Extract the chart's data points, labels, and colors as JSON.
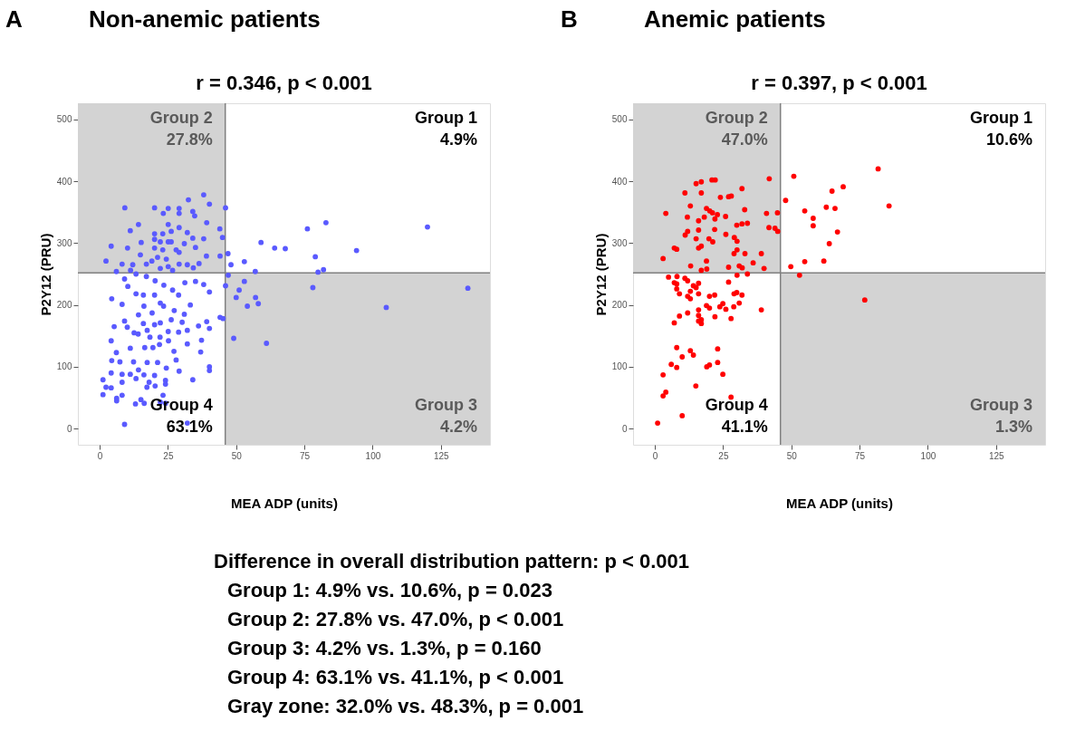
{
  "chart_data": [
    {
      "type": "scatter",
      "title": "Non-anemic patients",
      "subtitle": "r = 0.346, p < 0.001",
      "annotations": [
        "A",
        "Group 2\n27.8%",
        "Group 1\n4.9%",
        "Group 3\n4.2%",
        "Group 4\n63.1%"
      ],
      "xlabel": "MEA ADP (units)",
      "ylabel": "P2Y12 (PRU)",
      "xlim": [
        -8,
        143
      ],
      "ylim": [
        -26,
        526
      ],
      "xticks": [
        0,
        25,
        50,
        75,
        100,
        125
      ],
      "yticks": [
        0,
        100,
        200,
        300,
        400,
        500
      ],
      "grid": false,
      "legend": false,
      "marker": "circle",
      "ref_lines": [
        {
          "axis": "x",
          "value": 46,
          "label": null,
          "color": "#808080"
        },
        {
          "axis": "y",
          "value": 252,
          "label": null,
          "color": "#808080"
        }
      ],
      "series": [
        {
          "color": "#5a5aff",
          "x": [
            9.2,
            20.1,
            25.1,
            29.1,
            32.5,
            38.1,
            40.2,
            46.1,
            23.3,
            29.1,
            34.1,
            34.8,
            14.2,
            11.2,
            20.1,
            23.1,
            25.1,
            26.2,
            29.1,
            32.1,
            39.2,
            44,
            45,
            38.1,
            34.1,
            15.2,
            20.1,
            22.2,
            25.1,
            26.2,
            31,
            4.2,
            10.2,
            20.1,
            23.1,
            28,
            35.1,
            14.9,
            21.2,
            24.4,
            29.1,
            39.1,
            44.1,
            2.3,
            8.2,
            12.1,
            17.1,
            19.1,
            25.1,
            29.1,
            32.1,
            34.3,
            36.4,
            6.1,
            11.3,
            22.2,
            26.7,
            47,
            48.1,
            53,
            59.1,
            64.1,
            68,
            76.1,
            79,
            82.9,
            80,
            82,
            94.1,
            120.1,
            57,
            47.1,
            46.1,
            53,
            51.1,
            50,
            54.1,
            57.1,
            58.1,
            78.1,
            134.9,
            105,
            49.1,
            61.1,
            9.1,
            13.3,
            17.1,
            20.3,
            23.5,
            26.7,
            31.2,
            35.1,
            38.1,
            40.2,
            10.3,
            13.3,
            16,
            20.1,
            22.2,
            28.9,
            4.4,
            8.2,
            16.2,
            19.2,
            23.4,
            27.3,
            33.2,
            31,
            9.1,
            14.2,
            16,
            20.1,
            22.2,
            26.2,
            30.2,
            5.3,
            10.1,
            17.4,
            25.1,
            28.9,
            32.1,
            36.2,
            39.2,
            40.2,
            44.1,
            45.2,
            4.2,
            12.6,
            14.1,
            18.4,
            22.1,
            25.2,
            11.2,
            16.5,
            19.5,
            21.9,
            37.3,
            32.1,
            27.2,
            6.1,
            4.4,
            7.4,
            12.4,
            17.4,
            21.2,
            28,
            37,
            24.4,
            29.1,
            40.2,
            40.2,
            4.2,
            8.2,
            11.2,
            14.2,
            16.2,
            20.1,
            1.2,
            8.2,
            13.3,
            18.1,
            24.1,
            34.1,
            2.3,
            4.2,
            17.3,
            20.3,
            24.1,
            1.2,
            6.2,
            6.2,
            8.2,
            15.1,
            16.3,
            13.1,
            23.2,
            22.2,
            24.1,
            9.1,
            32.1
          ],
          "values": [
            357,
            357,
            356,
            356,
            370,
            378,
            363,
            357,
            348,
            348,
            351,
            344,
            330,
            320,
            315,
            315,
            330,
            319,
            325,
            317,
            333,
            323,
            309,
            307,
            308,
            301,
            306,
            302,
            302,
            302,
            299,
            295,
            292,
            292,
            289,
            289,
            293,
            281,
            277,
            274,
            285,
            279,
            279,
            271,
            266,
            265,
            266,
            271,
            262,
            266,
            265,
            260,
            267,
            254,
            256,
            259,
            256,
            283,
            265,
            270,
            301,
            292,
            291,
            323,
            278,
            333,
            253,
            257,
            288,
            326,
            254,
            248,
            231,
            238,
            224,
            212,
            198,
            212,
            202,
            228,
            227,
            196,
            146,
            138,
            242,
            250,
            246,
            239,
            232,
            224,
            236,
            238,
            233,
            221,
            230,
            218,
            216,
            216,
            203,
            216,
            210,
            201,
            198,
            187,
            198,
            191,
            200,
            185,
            174,
            184,
            170,
            168,
            171,
            176,
            172,
            165,
            164,
            159,
            157,
            156,
            159,
            166,
            173,
            162,
            180,
            178,
            142,
            155,
            153,
            148,
            148,
            142,
            130,
            131,
            131,
            136,
            143,
            137,
            125,
            123,
            110,
            108,
            108,
            107,
            107,
            111,
            124,
            98,
            93,
            100,
            94,
            90,
            88,
            88,
            95,
            87,
            86,
            79,
            75,
            81,
            75,
            78,
            79,
            67,
            66,
            67,
            69,
            72,
            55,
            49,
            45,
            54,
            47,
            41,
            40,
            54,
            43,
            41,
            7,
            9
          ]
        }
      ]
    },
    {
      "type": "scatter",
      "title": "Anemic patients",
      "subtitle": "r = 0.397, p < 0.001",
      "annotations": [
        "B",
        "Group 2\n47.0%",
        "Group 1\n10.6%",
        "Group 3\n1.3%",
        "Group 4\n41.1%"
      ],
      "xlabel": "MEA ADP (units)",
      "ylabel": "P2Y12 (PRU)",
      "xlim": [
        -8,
        143
      ],
      "ylim": [
        -26,
        526
      ],
      "xticks": [
        0,
        25,
        50,
        75,
        100,
        125
      ],
      "yticks": [
        0,
        100,
        200,
        300,
        400,
        500
      ],
      "grid": false,
      "legend": false,
      "marker": "circle",
      "ref_lines": [
        {
          "axis": "x",
          "value": 46,
          "label": null,
          "color": "#808080"
        },
        {
          "axis": "y",
          "value": 252,
          "label": null,
          "color": "#808080"
        }
      ],
      "series": [
        {
          "color": "#ff0000",
          "x": [
            17,
            20.9,
            22.1,
            15.1,
            41.9,
            11,
            17,
            24,
            27,
            28,
            31.9,
            13,
            4,
            18.9,
            20.1,
            21.1,
            22.9,
            25.9,
            32.9,
            40.9,
            44.9,
            11.9,
            16,
            18.1,
            22,
            31.9,
            30,
            33.9,
            41.8,
            44,
            45,
            12,
            16,
            21.9,
            11.1,
            15.1,
            19.8,
            21.2,
            26,
            29.1,
            30.1,
            7.1,
            8,
            16,
            17,
            29,
            30.1,
            33,
            39,
            3,
            13.1,
            18.9,
            27,
            30.9,
            32,
            36,
            40,
            17,
            19,
            50.9,
            81.8,
            69,
            64.9,
            47.9,
            85.8,
            62.8,
            66,
            54.9,
            58,
            58,
            66.9,
            63.9,
            49.8,
            54.9,
            61.9,
            53,
            76.9,
            5,
            8.1,
            11,
            12,
            7.1,
            8,
            16,
            14.1,
            15.1,
            13,
            8,
            9,
            16,
            12,
            13,
            20,
            21.9,
            27,
            30.1,
            33.9,
            29,
            30,
            31.9,
            30.9,
            24.9,
            23.8,
            26,
            28.9,
            18.9,
            20,
            39,
            16,
            16,
            17,
            16,
            17,
            12,
            9,
            7.1,
            22,
            27.9,
            8,
            13,
            14.1,
            23,
            10,
            6,
            8,
            19,
            20,
            23,
            3,
            24.9,
            15,
            4,
            3,
            27.9,
            10,
            1
          ],
          "values": [
            399,
            402,
            402,
            396,
            404,
            381,
            381,
            374,
            375,
            376,
            388,
            360,
            348,
            356,
            352,
            349,
            346,
            343,
            354,
            348,
            349,
            342,
            336,
            342,
            339,
            331,
            329,
            332,
            325,
            324,
            319,
            319,
            321,
            322,
            313,
            307,
            307,
            302,
            314,
            309,
            303,
            292,
            290,
            292,
            295,
            283,
            289,
            283,
            283,
            275,
            263,
            271,
            261,
            263,
            260,
            268,
            259,
            256,
            258,
            408,
            420,
            391,
            384,
            369,
            360,
            358,
            356,
            352,
            340,
            328,
            318,
            299,
            262,
            270,
            271,
            248,
            208,
            245,
            246,
            243,
            239,
            236,
            234,
            235,
            231,
            228,
            222,
            226,
            218,
            218,
            214,
            210,
            214,
            216,
            237,
            248,
            250,
            218,
            220,
            216,
            203,
            202,
            197,
            193,
            197,
            199,
            195,
            192,
            192,
            183,
            176,
            174,
            170,
            187,
            182,
            171,
            181,
            178,
            131,
            126,
            119,
            129,
            116,
            104,
            99,
            100,
            103,
            107,
            87,
            88,
            69,
            59,
            53,
            51,
            21,
            9
          ]
        }
      ]
    },
    {
      "type": "other",
      "annotations": [
        "Difference in overall distribution pattern: p < 0.001",
        "Group 1: 4.9% vs. 10.6%, p = 0.023",
        "Group 2: 27.8% vs. 47.0%, p < 0.001",
        "Group 3: 4.2% vs. 1.3%, p = 0.160",
        "Group 4: 63.1% vs. 41.1%, p < 0.001",
        "Gray zone: 32.0% vs. 48.3%, p = 0.001"
      ]
    }
  ]
}
